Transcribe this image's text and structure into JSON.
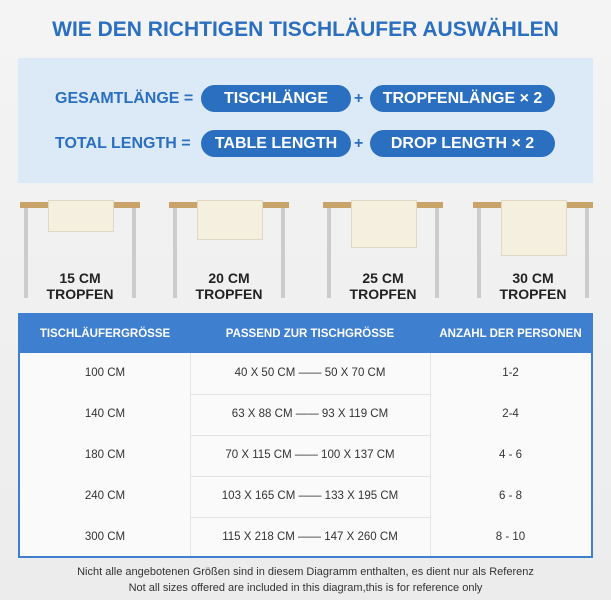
{
  "header": {
    "title": "WIE DEN RICHTIGEN TISCHLÄUFER AUSWÄHLEN"
  },
  "formula": [
    {
      "label": "GESAMTLÄNGE =",
      "left": "TISCHLÄNGE",
      "op": "+",
      "right": "TROPFENLÄNGE × 2"
    },
    {
      "label": "TOTAL LENGTH =",
      "left": "TABLE LENGTH",
      "op": "+",
      "right": "DROP LENGTH  × 2"
    }
  ],
  "drops": [
    {
      "size": "15 CM",
      "label": "TROPFEN"
    },
    {
      "size": "20 CM",
      "label": "TROPFEN"
    },
    {
      "size": "25 CM",
      "label": "TROPFEN"
    },
    {
      "size": "30 CM",
      "label": "TROPFEN"
    }
  ],
  "table": {
    "headers": [
      "TISCHLÄUFERGRÖSSE",
      "PASSEND ZUR TISCHGRÖSSE",
      "ANZAHL DER PERSONEN"
    ],
    "rows": [
      [
        "100 CM",
        "40 X 50 CM —— 50 X 70 CM",
        "1-2"
      ],
      [
        "140 CM",
        "63 X 88 CM —— 93 X 119 CM",
        "2-4"
      ],
      [
        "180 CM",
        "70 X 115 CM —— 100 X 137 CM",
        "4 - 6"
      ],
      [
        "240 CM",
        "103 X 165 CM —— 133 X 195 CM",
        "6 - 8"
      ],
      [
        "300 CM",
        "115 X 218 CM —— 147 X 260 CM",
        "8 - 10"
      ]
    ]
  },
  "footer": [
    "Nicht alle angebotenen Größen sind in diesem Diagramm enthalten, es dient nur als Referenz",
    "Not all sizes offered are included in this diagram,this is for reference only"
  ]
}
